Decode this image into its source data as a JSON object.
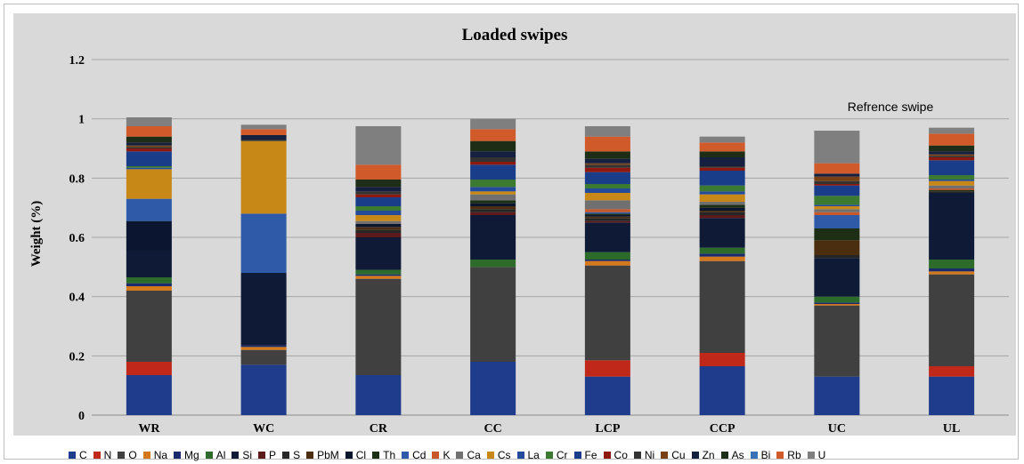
{
  "chart_data": {
    "type": "bar",
    "stacked": true,
    "title": "Loaded swipes",
    "ylabel": "Weight (%)",
    "xlabel": "",
    "ylim": [
      0,
      1.2
    ],
    "yticks": [
      "0",
      "0.2",
      "0.4",
      "0.6",
      "0.8",
      "1",
      "1.2"
    ],
    "grid": true,
    "legend_position": "bottom",
    "annotation": "Refrence swipe",
    "categories": [
      "WR",
      "WC",
      "CR",
      "CC",
      "LCP",
      "CCP",
      "UC",
      "UL"
    ],
    "series": [
      {
        "name": "C",
        "color": "#1f3b8c",
        "values": [
          0.135,
          0.17,
          0.135,
          0.18,
          0.13,
          0.165,
          0.13,
          0.13
        ]
      },
      {
        "name": "N",
        "color": "#c0281a",
        "values": [
          0.045,
          0.0,
          0.0,
          0.0,
          0.055,
          0.045,
          0.0,
          0.035
        ]
      },
      {
        "name": "O",
        "color": "#404040",
        "values": [
          0.24,
          0.05,
          0.325,
          0.32,
          0.32,
          0.31,
          0.24,
          0.31
        ]
      },
      {
        "name": "Na",
        "color": "#d4781c",
        "values": [
          0.015,
          0.01,
          0.01,
          0.0,
          0.015,
          0.015,
          0.005,
          0.01
        ]
      },
      {
        "name": "Mg",
        "color": "#1a2a6a",
        "values": [
          0.01,
          0.005,
          0.005,
          0.0,
          0.005,
          0.01,
          0.005,
          0.01
        ]
      },
      {
        "name": "Al",
        "color": "#2d6b2a",
        "values": [
          0.02,
          0.0,
          0.015,
          0.025,
          0.025,
          0.02,
          0.02,
          0.03
        ]
      },
      {
        "name": "Si",
        "color": "#0e1a36",
        "values": [
          0.09,
          0.245,
          0.11,
          0.15,
          0.1,
          0.1,
          0.13,
          0.225
        ]
      },
      {
        "name": "P",
        "color": "#5c1a1a",
        "values": [
          0.0,
          0.0,
          0.015,
          0.01,
          0.005,
          0.01,
          0.0,
          0.0
        ]
      },
      {
        "name": "S",
        "color": "#262626",
        "values": [
          0.0,
          0.0,
          0.01,
          0.01,
          0.01,
          0.01,
          0.01,
          0.005
        ]
      },
      {
        "name": "PbM",
        "color": "#4a2e0f",
        "values": [
          0.0,
          0.0,
          0.01,
          0.01,
          0.005,
          0.005,
          0.05,
          0.0
        ]
      },
      {
        "name": "Cl",
        "color": "#0b1530",
        "values": [
          0.1,
          0.0,
          0.01,
          0.01,
          0.005,
          0.01,
          0.0,
          0.0
        ]
      },
      {
        "name": "Th",
        "color": "#1c2e14",
        "values": [
          0.0,
          0.0,
          0.0,
          0.01,
          0.005,
          0.01,
          0.04,
          0.005
        ]
      },
      {
        "name": "Cd",
        "color": "#2e5aa8",
        "values": [
          0.075,
          0.2,
          0.0,
          0.0,
          0.005,
          0.0,
          0.045,
          0.0
        ]
      },
      {
        "name": "K",
        "color": "#c8572a",
        "values": [
          0.0,
          0.0,
          0.0,
          0.0,
          0.01,
          0.0,
          0.01,
          0.005
        ]
      },
      {
        "name": "Ca",
        "color": "#707070",
        "values": [
          0.0,
          0.0,
          0.01,
          0.02,
          0.03,
          0.01,
          0.01,
          0.01
        ]
      },
      {
        "name": "Cs",
        "color": "#c88818",
        "values": [
          0.1,
          0.245,
          0.02,
          0.01,
          0.025,
          0.025,
          0.01,
          0.015
        ]
      },
      {
        "name": "La",
        "color": "#244a9a",
        "values": [
          0.005,
          0.0,
          0.015,
          0.015,
          0.015,
          0.01,
          0.005,
          0.005
        ]
      },
      {
        "name": "Cr",
        "color": "#3c7a32",
        "values": [
          0.005,
          0.0,
          0.015,
          0.025,
          0.015,
          0.02,
          0.03,
          0.015
        ]
      },
      {
        "name": "Fe",
        "color": "#1a3d8a",
        "values": [
          0.05,
          0.0,
          0.03,
          0.05,
          0.04,
          0.05,
          0.035,
          0.05
        ]
      },
      {
        "name": "Co",
        "color": "#8c1a10",
        "values": [
          0.01,
          0.0,
          0.01,
          0.01,
          0.015,
          0.01,
          0.005,
          0.01
        ]
      },
      {
        "name": "Ni",
        "color": "#333333",
        "values": [
          0.005,
          0.005,
          0.01,
          0.015,
          0.01,
          0.005,
          0.01,
          0.005
        ]
      },
      {
        "name": "Cu",
        "color": "#7a4015",
        "values": [
          0.005,
          0.0,
          0.0,
          0.0,
          0.005,
          0.0,
          0.015,
          0.005
        ]
      },
      {
        "name": "Zn",
        "color": "#152040",
        "values": [
          0.01,
          0.015,
          0.015,
          0.02,
          0.015,
          0.03,
          0.01,
          0.01
        ]
      },
      {
        "name": "As",
        "color": "#1e2e16",
        "values": [
          0.02,
          0.0,
          0.025,
          0.035,
          0.025,
          0.02,
          0.0,
          0.02
        ]
      },
      {
        "name": "Bi",
        "color": "#3a72b8",
        "values": [
          0.0,
          0.0,
          0.0,
          0.0,
          0.0,
          0.0,
          0.0,
          0.0
        ]
      },
      {
        "name": "Rb",
        "color": "#d05a2a",
        "values": [
          0.035,
          0.02,
          0.05,
          0.04,
          0.05,
          0.03,
          0.035,
          0.04
        ]
      },
      {
        "name": "U",
        "color": "#7f7f7f",
        "values": [
          0.03,
          0.015,
          0.13,
          0.035,
          0.035,
          0.02,
          0.11,
          0.02
        ]
      }
    ]
  }
}
